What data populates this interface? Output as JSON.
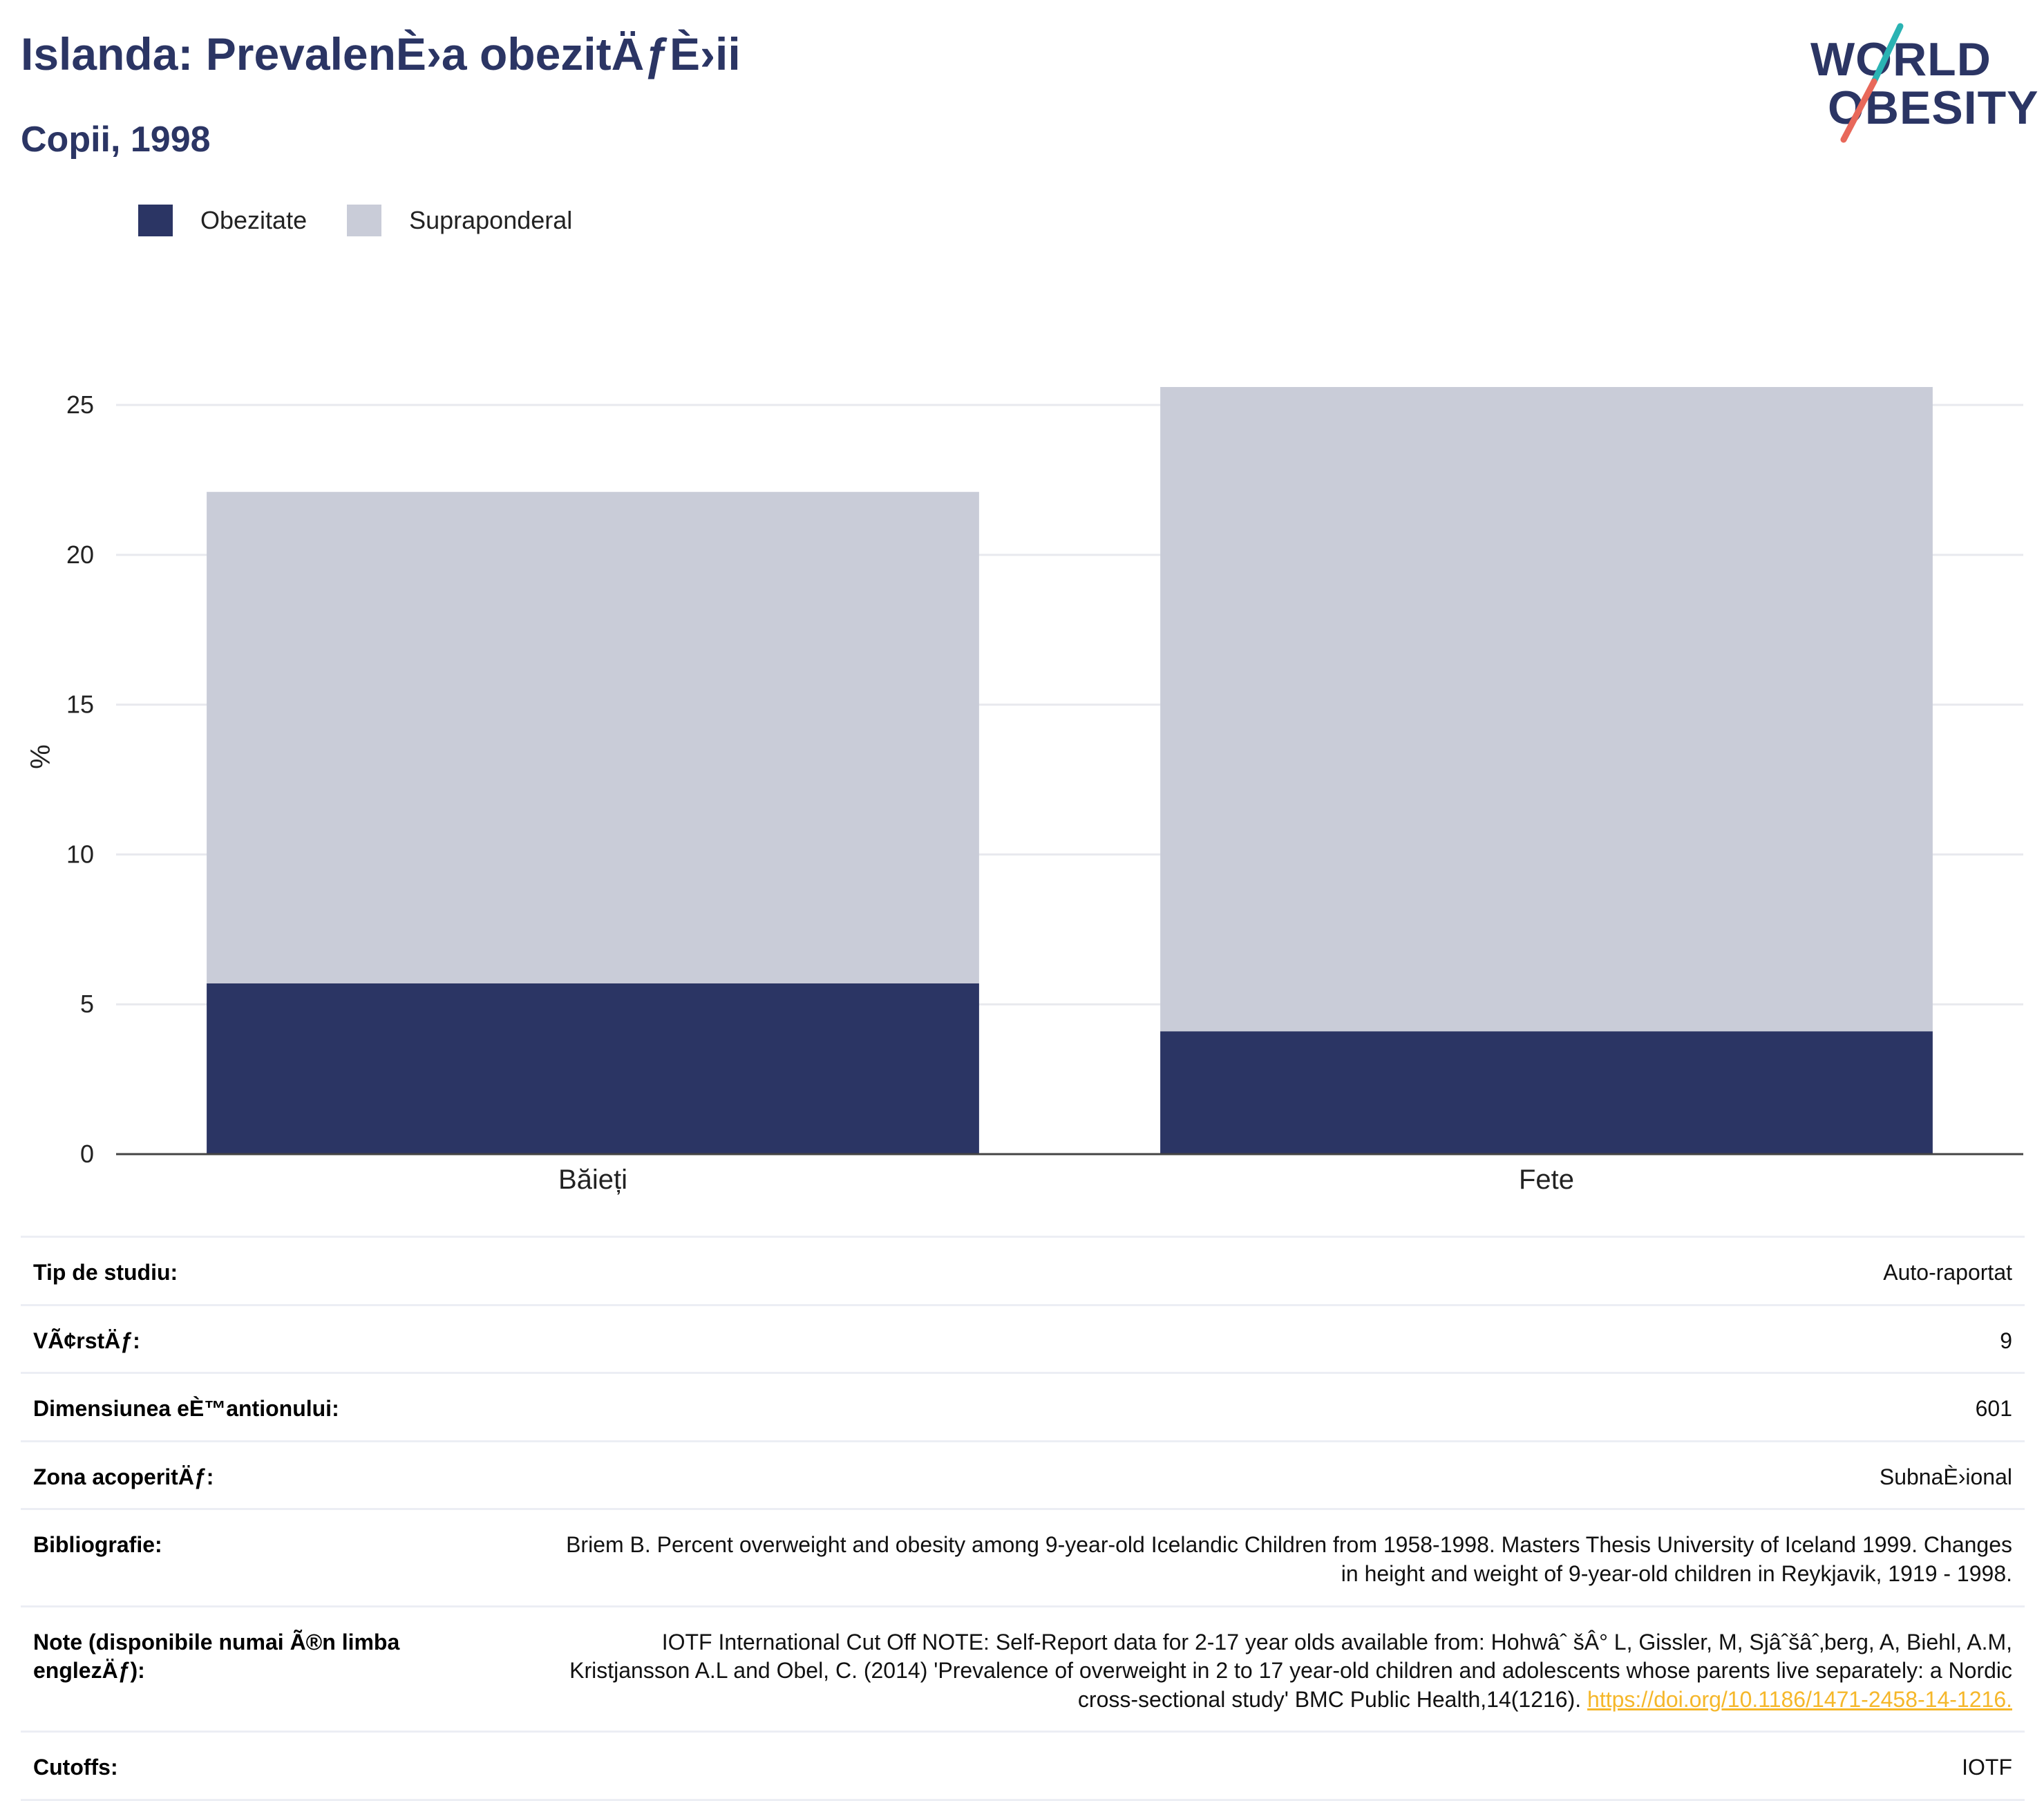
{
  "header": {
    "title": "Islanda: PrevalenÈ›a obezitÄƒÈ›ii",
    "subtitle": "Copii, 1998"
  },
  "logo": {
    "line1": "WORLD",
    "line2": "OBESITY",
    "colors": {
      "navy": "#2b3564",
      "teal": "#2ab3b3",
      "coral": "#e8685a"
    }
  },
  "legend": [
    {
      "label": "Obezitate",
      "color": "#2b3564"
    },
    {
      "label": "Supraponderal",
      "color": "#c9ccd8"
    }
  ],
  "chart_data": {
    "type": "bar",
    "stacked": true,
    "categories": [
      "Băieți",
      "Fete"
    ],
    "series": [
      {
        "name": "Obezitate",
        "values": [
          5.7,
          4.1
        ],
        "color": "#2b3564"
      },
      {
        "name": "Supraponderal",
        "values": [
          16.4,
          21.5
        ],
        "color": "#c9ccd8"
      }
    ],
    "ylabel": "%",
    "ylim": [
      0,
      25.6
    ],
    "yticks": [
      0,
      5,
      10,
      15,
      20,
      25
    ],
    "grid": true
  },
  "meta": {
    "rows": [
      {
        "key": "Tip de studiu:",
        "value": "Auto-raportat"
      },
      {
        "key": "VÃ¢rstÄƒ:",
        "value": "9"
      },
      {
        "key": "Dimensiunea eÈ™antionului:",
        "value": "601"
      },
      {
        "key": "Zona acoperitÄƒ:",
        "value": "SubnaÈ›ional"
      },
      {
        "key": "Bibliografie:",
        "value": "Briem B. Percent overweight and obesity among 9-year-old Icelandic Children from 1958-1998. Masters Thesis University of Iceland 1999. Changes in height and weight of 9-year-old children in Reykjavik, 1919 - 1998."
      },
      {
        "key": "Note (disponibile numai Ã®n limba englezÄƒ):",
        "value": "IOTF International Cut Off NOTE: Self-Report data for 2-17 year olds available from: Hohwâˆ šÂ° L, Gissler, M, Sjâˆšâˆ‚berg, A, Biehl, A.M, Kristjansson A.L and Obel, C. (2014) 'Prevalence of overweight in 2 to 17 year-old children and adolescents whose parents live separately: a Nordic cross-sectional study' BMC Public Health,14(1216).",
        "link": "https://doi.org/10.1186/1471-2458-14-1216."
      },
      {
        "key": "Cutoffs:",
        "value": "IOTF"
      }
    ]
  }
}
